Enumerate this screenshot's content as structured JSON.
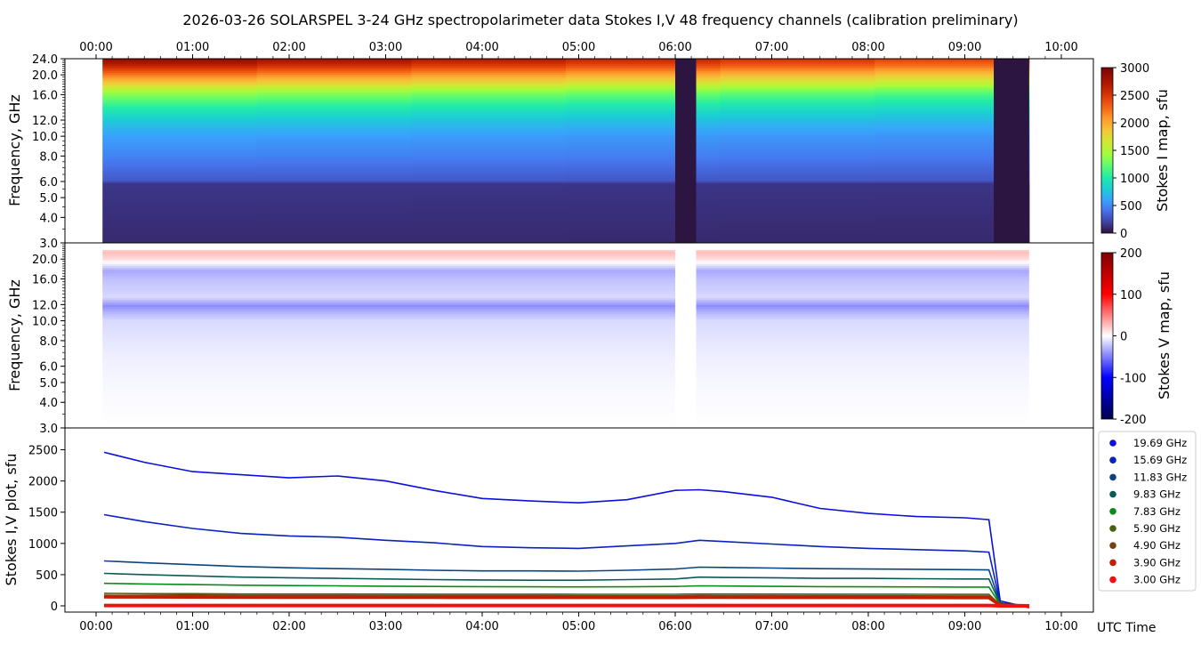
{
  "title": "2026-03-26  SOLARSPEL  3-24 GHz spectropolarimeter data   Stokes I,V   48 frequency channels   (calibration preliminary)",
  "time_ticks": [
    "00:00",
    "01:00",
    "02:00",
    "03:00",
    "04:00",
    "05:00",
    "06:00",
    "07:00",
    "08:00",
    "09:00",
    "10:00"
  ],
  "x_axis_label": "UTC Time",
  "freq_ticks": [
    "3.0",
    "4.0",
    "5.0",
    "6.0",
    "8.0",
    "10.0",
    "12.0",
    "16.0",
    "20.0",
    "24.0"
  ],
  "freq_ticks_v": [
    "3.0",
    "4.0",
    "5.0",
    "6.0",
    "8.0",
    "10.0",
    "12.0",
    "16.0",
    "20.0"
  ],
  "panel_i": {
    "ylabel": "Frequency, GHz",
    "cbar_label": "Stokes I map, sfu",
    "cbar_ticks": [
      "0",
      "500",
      "1000",
      "1500",
      "2000",
      "2500",
      "3000"
    ]
  },
  "panel_v": {
    "ylabel": "Frequency, GHz",
    "cbar_label": "Stokes V map, sfu",
    "cbar_ticks": [
      "-200",
      "-100",
      "0",
      "100",
      "200"
    ]
  },
  "panel_plot": {
    "ylabel": "Stokes I,V plot, sfu",
    "yticks": [
      "0",
      "500",
      "1000",
      "1500",
      "2000",
      "2500"
    ]
  },
  "legend": [
    {
      "label": "19.69 GHz",
      "color": "#0a10e0"
    },
    {
      "label": "15.69 GHz",
      "color": "#0a22c0"
    },
    {
      "label": "11.83 GHz",
      "color": "#0a4480"
    },
    {
      "label": "9.83 GHz",
      "color": "#0a5a58"
    },
    {
      "label": "7.83 GHz",
      "color": "#0a8a1a"
    },
    {
      "label": "5.90 GHz",
      "color": "#456010"
    },
    {
      "label": "4.90 GHz",
      "color": "#7a4010"
    },
    {
      "label": "3.90 GHz",
      "color": "#c02000"
    },
    {
      "label": "3.00 GHz",
      "color": "#f01010"
    }
  ],
  "chart_data": [
    {
      "type": "heatmap",
      "title": "Stokes I map",
      "xlabel": "UTC Time",
      "ylabel": "Frequency, GHz",
      "xlim": [
        "00:00",
        "10:00"
      ],
      "ylim": [
        3.0,
        24.0
      ],
      "yscale": "log",
      "zlim": [
        0,
        3000
      ],
      "zlabel": "Stokes I map, sfu",
      "data_start": "00:04",
      "data_end": "09:40",
      "gaps": [
        [
          "06:00",
          "06:13"
        ],
        [
          "09:18",
          "09:40"
        ]
      ],
      "frequency_profile_sfu": [
        [
          3.0,
          100
        ],
        [
          5.9,
          150
        ],
        [
          6.0,
          300
        ],
        [
          8.0,
          480
        ],
        [
          10.0,
          600
        ],
        [
          12.0,
          800
        ],
        [
          14.0,
          1050
        ],
        [
          16.0,
          1350
        ],
        [
          17.0,
          1550
        ],
        [
          18.0,
          1800
        ],
        [
          20.0,
          2200
        ],
        [
          22.0,
          2600
        ],
        [
          24.0,
          2900
        ]
      ]
    },
    {
      "type": "heatmap",
      "title": "Stokes V map",
      "xlabel": "UTC Time",
      "ylabel": "Frequency, GHz",
      "xlim": [
        "00:00",
        "10:00"
      ],
      "ylim": [
        3.0,
        24.0
      ],
      "yscale": "log",
      "zlim": [
        -200,
        200
      ],
      "zlabel": "Stokes V map, sfu",
      "gaps": [
        [
          "06:00",
          "06:13"
        ]
      ],
      "frequency_profile_sfu": [
        [
          3.0,
          0
        ],
        [
          6.0,
          -5
        ],
        [
          10.0,
          -15
        ],
        [
          11.0,
          -30
        ],
        [
          11.8,
          -45
        ],
        [
          13.0,
          -15
        ],
        [
          16.0,
          -25
        ],
        [
          17.5,
          -35
        ],
        [
          20.0,
          15
        ],
        [
          21.5,
          25
        ],
        [
          23.0,
          10
        ]
      ]
    },
    {
      "type": "line",
      "xlabel": "UTC Time",
      "ylabel": "Stokes I,V plot, sfu",
      "ylim": [
        -100,
        2850
      ],
      "x": [
        "00:05",
        "00:30",
        "01:00",
        "01:30",
        "02:00",
        "02:30",
        "03:00",
        "03:30",
        "04:00",
        "04:30",
        "05:00",
        "05:30",
        "06:00",
        "06:15",
        "06:30",
        "07:00",
        "07:30",
        "08:00",
        "08:30",
        "09:00",
        "09:15",
        "09:22",
        "09:40"
      ],
      "series": [
        {
          "name": "19.69 GHz",
          "values": [
            2460,
            2300,
            2150,
            2100,
            2050,
            2080,
            2000,
            1850,
            1720,
            1680,
            1650,
            1700,
            1850,
            1860,
            1830,
            1740,
            1560,
            1480,
            1430,
            1410,
            1380,
            80,
            -30
          ]
        },
        {
          "name": "15.69 GHz",
          "values": [
            1460,
            1350,
            1240,
            1160,
            1120,
            1100,
            1050,
            1010,
            950,
            930,
            920,
            960,
            1000,
            1050,
            1030,
            990,
            950,
            920,
            900,
            880,
            860,
            50,
            -20
          ]
        },
        {
          "name": "11.83 GHz",
          "values": [
            720,
            690,
            660,
            630,
            610,
            595,
            585,
            570,
            560,
            560,
            555,
            570,
            590,
            620,
            615,
            605,
            595,
            590,
            585,
            580,
            575,
            40,
            -10
          ]
        },
        {
          "name": "9.83 GHz",
          "values": [
            520,
            500,
            480,
            460,
            450,
            440,
            430,
            420,
            415,
            410,
            410,
            420,
            430,
            460,
            455,
            450,
            440,
            440,
            435,
            430,
            430,
            30,
            -5
          ]
        },
        {
          "name": "7.83 GHz",
          "values": [
            360,
            350,
            340,
            330,
            325,
            320,
            315,
            310,
            308,
            305,
            303,
            305,
            310,
            320,
            318,
            312,
            308,
            305,
            303,
            300,
            300,
            20,
            0
          ]
        },
        {
          "name": "5.90 GHz",
          "values": [
            200,
            195,
            195,
            190,
            190,
            190,
            188,
            187,
            186,
            186,
            185,
            185,
            185,
            190,
            190,
            188,
            187,
            186,
            185,
            184,
            184,
            15,
            0
          ]
        },
        {
          "name": "4.90 GHz",
          "values": [
            170,
            168,
            175,
            165,
            165,
            165,
            164,
            163,
            162,
            162,
            161,
            160,
            160,
            165,
            163,
            162,
            161,
            160,
            160,
            158,
            158,
            12,
            0
          ]
        },
        {
          "name": "3.90 GHz",
          "values": [
            145,
            143,
            142,
            141,
            140,
            140,
            139,
            138,
            137,
            137,
            136,
            135,
            135,
            140,
            138,
            137,
            136,
            135,
            135,
            134,
            134,
            10,
            0
          ]
        },
        {
          "name": "3.00 GHz",
          "values": [
            5,
            5,
            5,
            5,
            5,
            5,
            5,
            5,
            5,
            5,
            5,
            5,
            5,
            5,
            5,
            5,
            5,
            5,
            5,
            5,
            5,
            0,
            0
          ]
        }
      ]
    }
  ]
}
